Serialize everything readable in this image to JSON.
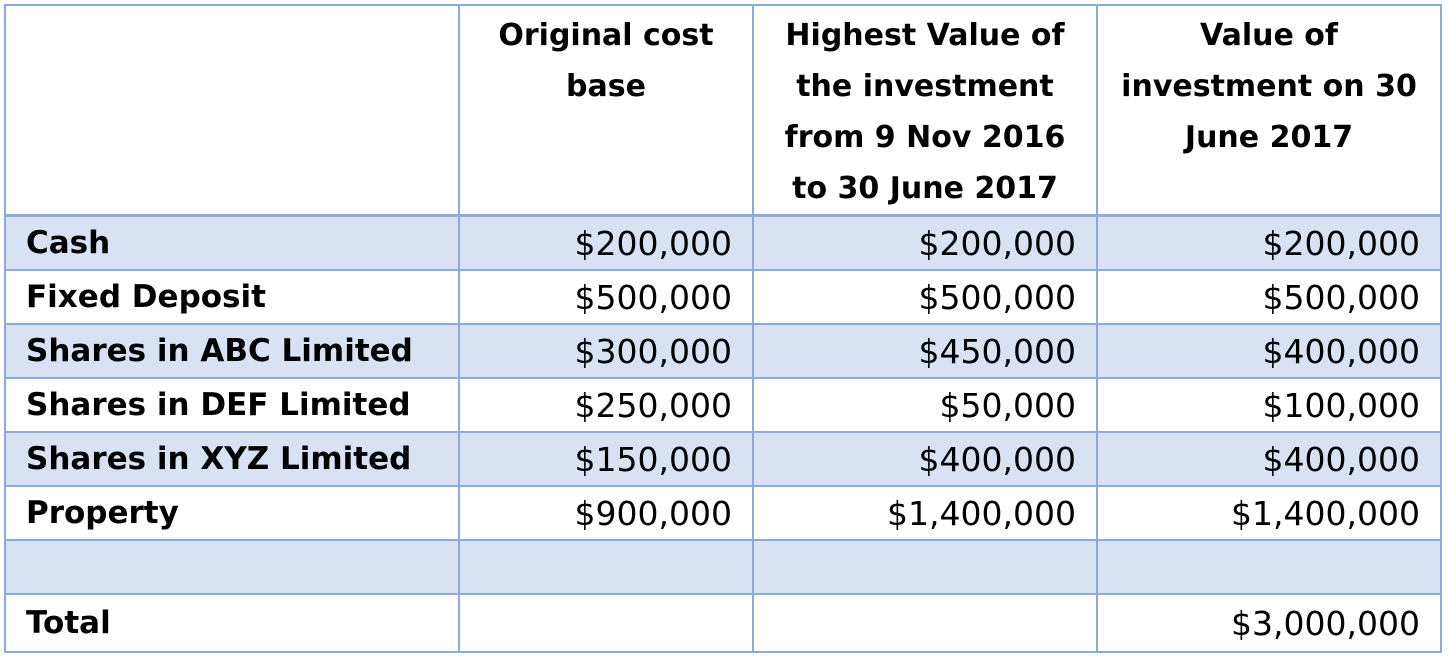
{
  "table": {
    "columns": [
      "",
      "Original cost base",
      "Highest Value of the investment from 9 Nov 2016 to 30 June 2017",
      "Value of investment on 30 June 2017"
    ],
    "rows": [
      {
        "label": "Cash",
        "cost": "$200,000",
        "highest": "$200,000",
        "value_june": "$200,000"
      },
      {
        "label": "Fixed Deposit",
        "cost": "$500,000",
        "highest": "$500,000",
        "value_june": "$500,000"
      },
      {
        "label": "Shares in ABC Limited",
        "cost": "$300,000",
        "highest": "$450,000",
        "value_june": "$400,000"
      },
      {
        "label": "Shares in DEF Limited",
        "cost": "$250,000",
        "highest": "$50,000",
        "value_june": "$100,000"
      },
      {
        "label": "Shares in XYZ Limited",
        "cost": "$150,000",
        "highest": "$400,000",
        "value_june": "$400,000"
      },
      {
        "label": "Property",
        "cost": "$900,000",
        "highest": "$1,400,000",
        "value_june": "$1,400,000"
      },
      {
        "label": "",
        "cost": "",
        "highest": "",
        "value_june": ""
      }
    ],
    "total": {
      "label": "Total",
      "cost": "",
      "highest": "",
      "value_june": "$3,000,000"
    }
  },
  "colors": {
    "border": "#8EAADB",
    "band_fill": "#D9E2F3"
  }
}
